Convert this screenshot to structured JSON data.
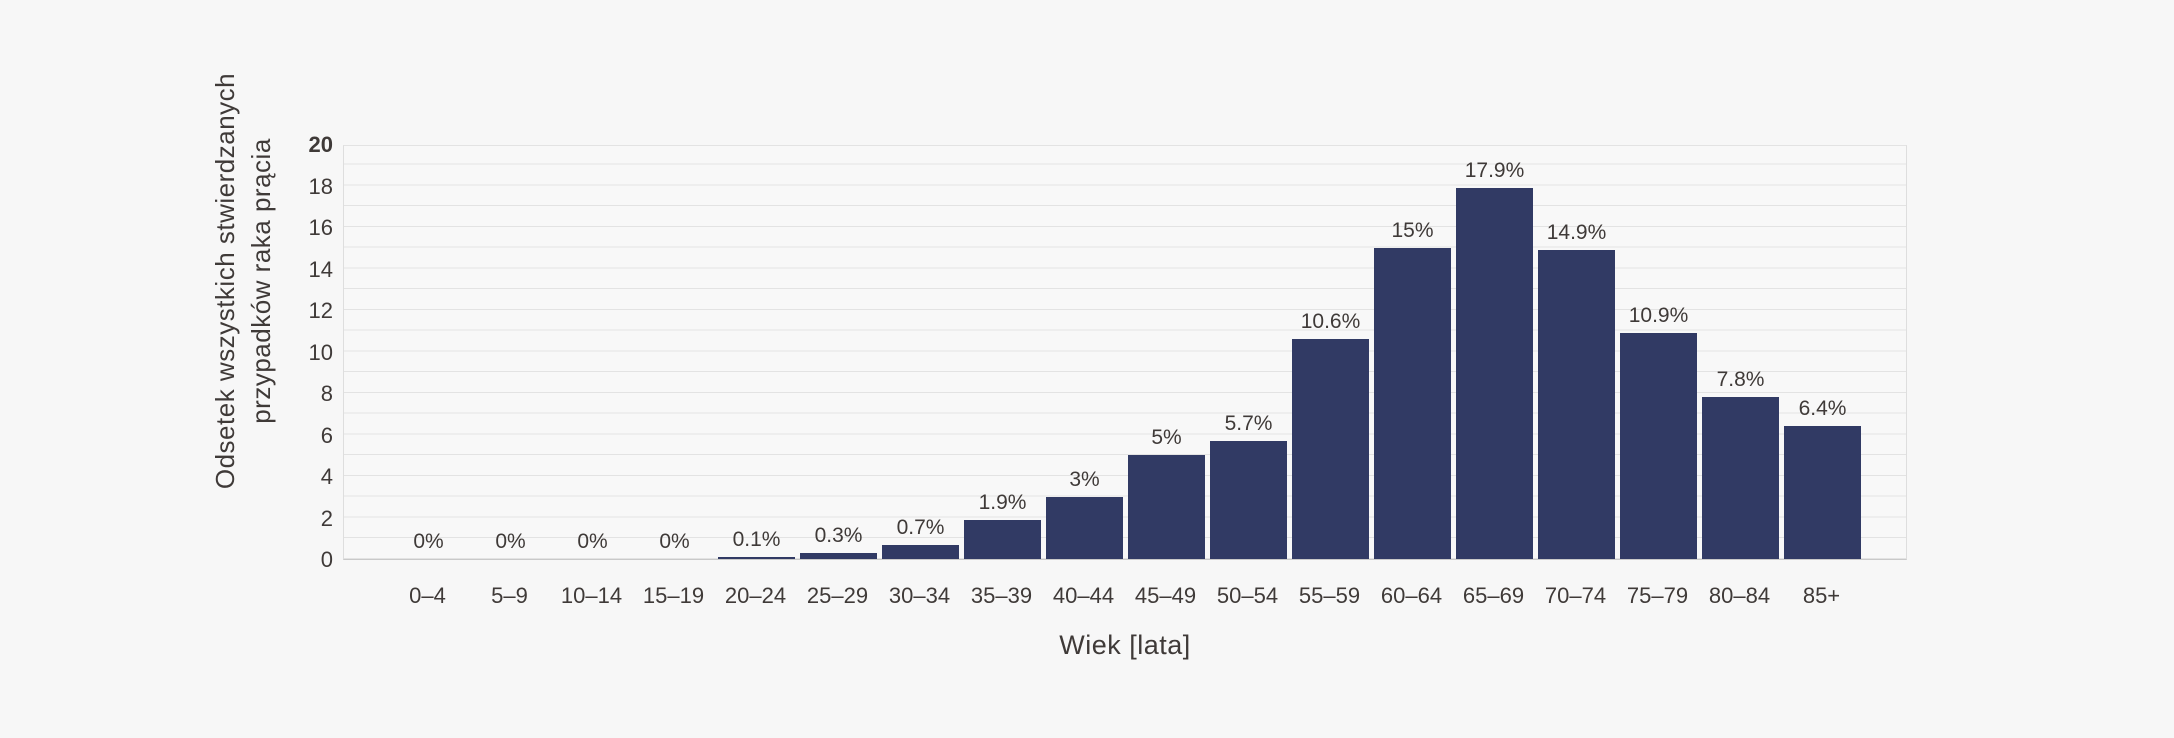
{
  "chart_data": {
    "type": "bar",
    "title": "",
    "categories": [
      "0–4",
      "5–9",
      "10–14",
      "15–19",
      "20–24",
      "25–29",
      "30–34",
      "35–39",
      "40–44",
      "45–49",
      "50–54",
      "55–59",
      "60–64",
      "65–69",
      "70–74",
      "75–79",
      "80–84",
      "85+"
    ],
    "values": [
      0,
      0,
      0,
      0,
      0.1,
      0.3,
      0.7,
      1.9,
      3,
      5,
      5.7,
      10.6,
      15,
      17.9,
      14.9,
      10.9,
      7.8,
      6.4
    ],
    "value_labels": [
      "0%",
      "0%",
      "0%",
      "0%",
      "0.1%",
      "0.3%",
      "0.7%",
      "1.9%",
      "3%",
      "5%",
      "5.7%",
      "10.6%",
      "15%",
      "17.9%",
      "14.9%",
      "10.9%",
      "7.8%",
      "6.4%"
    ],
    "xlabel": "Wiek [lata]",
    "ylabel": "Odsetek wszystkich stwierdzanych przypadków raka prącia",
    "ylabel_lines": [
      "Odsetek wszystkich stwierdzanych",
      "przypadków raka prącia"
    ],
    "ylim": [
      0,
      20
    ],
    "yticks": [
      0,
      2,
      4,
      6,
      8,
      10,
      12,
      14,
      16,
      18,
      20
    ],
    "grid": "horizontal, every 1 unit",
    "legend": "none",
    "colors": {
      "bar": "#313a64",
      "background": "#f7f7f7",
      "grid": "#e3e3e3",
      "axis": "#c9c9c9",
      "text": "#3f3a38"
    }
  }
}
